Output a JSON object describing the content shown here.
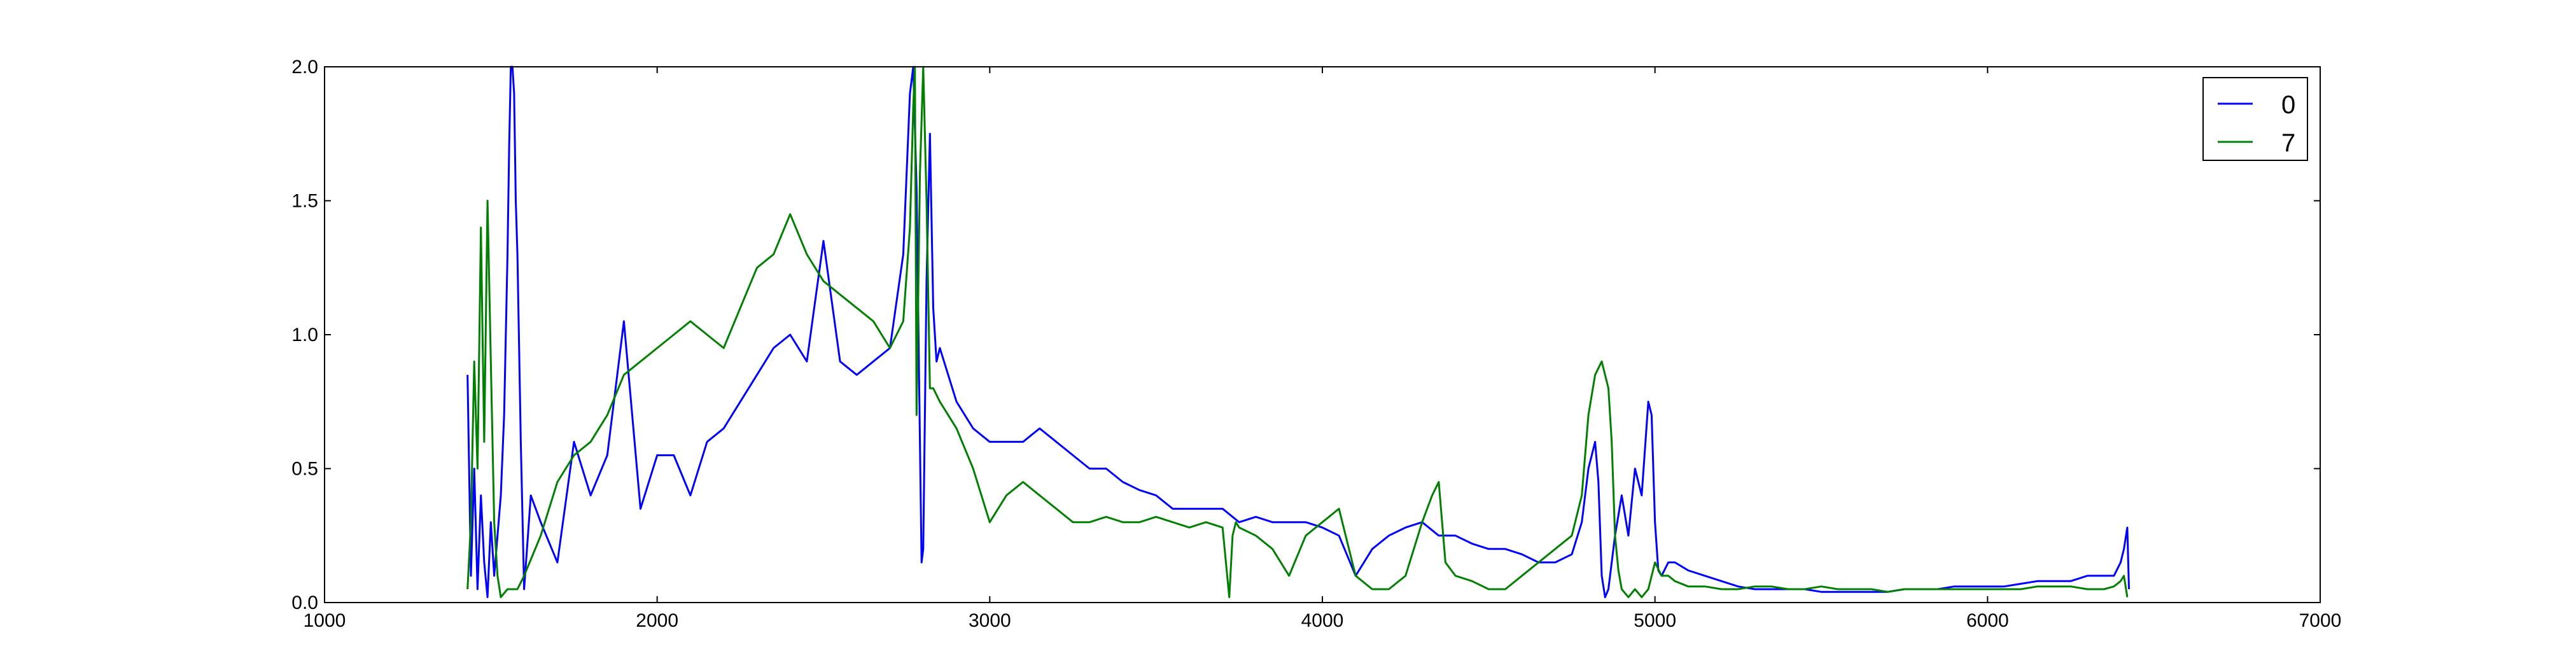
{
  "chart_data": {
    "type": "line",
    "title": "",
    "xlabel": "",
    "ylabel": "",
    "xlim": [
      1000,
      7000
    ],
    "ylim": [
      0.0,
      2.0
    ],
    "x_ticks": [
      "1000",
      "2000",
      "3000",
      "4000",
      "5000",
      "6000",
      "7000"
    ],
    "y_ticks": [
      "0.0",
      "0.5",
      "1.0",
      "1.5",
      "2.0"
    ],
    "grid": false,
    "legend_position": "top-right",
    "series": [
      {
        "name": "0",
        "color": "#0000ff",
        "x": [
          1430,
          1440,
          1450,
          1460,
          1470,
          1480,
          1490,
          1500,
          1510,
          1520,
          1530,
          1540,
          1550,
          1555,
          1560,
          1565,
          1570,
          1575,
          1580,
          1590,
          1600,
          1620,
          1650,
          1700,
          1750,
          1800,
          1850,
          1900,
          1950,
          2000,
          2050,
          2100,
          2150,
          2200,
          2250,
          2300,
          2350,
          2400,
          2450,
          2500,
          2550,
          2600,
          2650,
          2700,
          2740,
          2760,
          2770,
          2780,
          2790,
          2795,
          2800,
          2810,
          2820,
          2830,
          2840,
          2850,
          2875,
          2900,
          2950,
          3000,
          3050,
          3100,
          3150,
          3200,
          3250,
          3300,
          3350,
          3400,
          3450,
          3500,
          3550,
          3600,
          3650,
          3700,
          3750,
          3800,
          3850,
          3900,
          3950,
          4000,
          4050,
          4100,
          4150,
          4200,
          4250,
          4300,
          4350,
          4400,
          4450,
          4500,
          4550,
          4600,
          4650,
          4700,
          4750,
          4780,
          4800,
          4820,
          4830,
          4840,
          4850,
          4860,
          4880,
          4900,
          4920,
          4940,
          4960,
          4980,
          4990,
          5000,
          5010,
          5020,
          5040,
          5060,
          5100,
          5150,
          5200,
          5250,
          5300,
          5350,
          5400,
          5450,
          5500,
          5550,
          5600,
          5650,
          5700,
          5750,
          5800,
          5850,
          5900,
          5950,
          6000,
          6050,
          6100,
          6150,
          6200,
          6250,
          6300,
          6350,
          6380,
          6400,
          6410,
          6420,
          6425
        ],
        "y": [
          0.85,
          0.1,
          0.5,
          0.05,
          0.4,
          0.15,
          0.02,
          0.3,
          0.1,
          0.25,
          0.4,
          0.7,
          1.3,
          1.7,
          2.0,
          2.0,
          1.9,
          1.5,
          1.3,
          0.6,
          0.05,
          0.4,
          0.3,
          0.15,
          0.6,
          0.4,
          0.55,
          1.05,
          0.35,
          0.55,
          0.55,
          0.4,
          0.6,
          0.65,
          0.75,
          0.85,
          0.95,
          1.0,
          0.9,
          1.35,
          0.9,
          0.85,
          0.9,
          0.95,
          1.3,
          1.9,
          2.0,
          1.55,
          0.6,
          0.15,
          0.2,
          1.2,
          1.75,
          1.1,
          0.9,
          0.95,
          0.85,
          0.75,
          0.65,
          0.6,
          0.6,
          0.6,
          0.65,
          0.6,
          0.55,
          0.5,
          0.5,
          0.45,
          0.42,
          0.4,
          0.35,
          0.35,
          0.35,
          0.35,
          0.3,
          0.32,
          0.3,
          0.3,
          0.3,
          0.28,
          0.25,
          0.1,
          0.2,
          0.25,
          0.28,
          0.3,
          0.25,
          0.25,
          0.22,
          0.2,
          0.2,
          0.18,
          0.15,
          0.15,
          0.18,
          0.3,
          0.5,
          0.6,
          0.45,
          0.1,
          0.02,
          0.05,
          0.25,
          0.4,
          0.25,
          0.5,
          0.4,
          0.75,
          0.7,
          0.3,
          0.12,
          0.1,
          0.15,
          0.15,
          0.12,
          0.1,
          0.08,
          0.06,
          0.05,
          0.05,
          0.05,
          0.05,
          0.04,
          0.04,
          0.04,
          0.04,
          0.04,
          0.05,
          0.05,
          0.05,
          0.06,
          0.06,
          0.06,
          0.06,
          0.07,
          0.08,
          0.08,
          0.08,
          0.1,
          0.1,
          0.1,
          0.15,
          0.2,
          0.28,
          0.05
        ]
      },
      {
        "name": "7",
        "color": "#008000",
        "x": [
          1430,
          1440,
          1450,
          1460,
          1470,
          1480,
          1490,
          1500,
          1510,
          1520,
          1530,
          1550,
          1580,
          1600,
          1650,
          1700,
          1750,
          1800,
          1850,
          1900,
          1950,
          2000,
          2050,
          2100,
          2150,
          2200,
          2250,
          2300,
          2350,
          2400,
          2450,
          2500,
          2550,
          2600,
          2650,
          2700,
          2740,
          2760,
          2770,
          2775,
          2780,
          2790,
          2800,
          2810,
          2820,
          2830,
          2850,
          2900,
          2950,
          3000,
          3050,
          3100,
          3150,
          3200,
          3250,
          3300,
          3350,
          3400,
          3450,
          3500,
          3550,
          3600,
          3650,
          3700,
          3720,
          3730,
          3740,
          3750,
          3800,
          3850,
          3900,
          3950,
          4000,
          4050,
          4100,
          4150,
          4200,
          4250,
          4300,
          4330,
          4350,
          4370,
          4400,
          4450,
          4500,
          4550,
          4600,
          4650,
          4700,
          4750,
          4780,
          4800,
          4820,
          4840,
          4850,
          4860,
          4870,
          4880,
          4890,
          4900,
          4920,
          4940,
          4960,
          4980,
          5000,
          5020,
          5040,
          5060,
          5100,
          5150,
          5200,
          5250,
          5300,
          5350,
          5400,
          5450,
          5500,
          5550,
          5600,
          5650,
          5700,
          5750,
          5800,
          5850,
          5900,
          5950,
          6000,
          6050,
          6100,
          6150,
          6200,
          6250,
          6300,
          6350,
          6380,
          6400,
          6410,
          6420
        ],
        "y": [
          0.05,
          0.3,
          0.9,
          0.5,
          1.4,
          0.6,
          1.5,
          0.9,
          0.3,
          0.1,
          0.02,
          0.05,
          0.05,
          0.1,
          0.25,
          0.45,
          0.55,
          0.6,
          0.7,
          0.85,
          0.9,
          0.95,
          1.0,
          1.05,
          1.0,
          0.95,
          1.1,
          1.25,
          1.3,
          1.45,
          1.3,
          1.2,
          1.15,
          1.1,
          1.05,
          0.95,
          1.05,
          1.4,
          1.85,
          2.0,
          0.7,
          1.6,
          2.0,
          1.5,
          0.8,
          0.8,
          0.75,
          0.65,
          0.5,
          0.3,
          0.4,
          0.45,
          0.4,
          0.35,
          0.3,
          0.3,
          0.32,
          0.3,
          0.3,
          0.32,
          0.3,
          0.28,
          0.3,
          0.28,
          0.02,
          0.25,
          0.3,
          0.28,
          0.25,
          0.2,
          0.1,
          0.25,
          0.3,
          0.35,
          0.1,
          0.05,
          0.05,
          0.1,
          0.3,
          0.4,
          0.45,
          0.15,
          0.1,
          0.08,
          0.05,
          0.05,
          0.1,
          0.15,
          0.2,
          0.25,
          0.4,
          0.7,
          0.85,
          0.9,
          0.85,
          0.8,
          0.6,
          0.25,
          0.12,
          0.05,
          0.02,
          0.05,
          0.02,
          0.05,
          0.15,
          0.1,
          0.1,
          0.08,
          0.06,
          0.06,
          0.05,
          0.05,
          0.06,
          0.06,
          0.05,
          0.05,
          0.06,
          0.05,
          0.05,
          0.05,
          0.04,
          0.05,
          0.05,
          0.05,
          0.05,
          0.05,
          0.05,
          0.05,
          0.05,
          0.06,
          0.06,
          0.06,
          0.05,
          0.05,
          0.06,
          0.08,
          0.1,
          0.02
        ]
      }
    ]
  }
}
